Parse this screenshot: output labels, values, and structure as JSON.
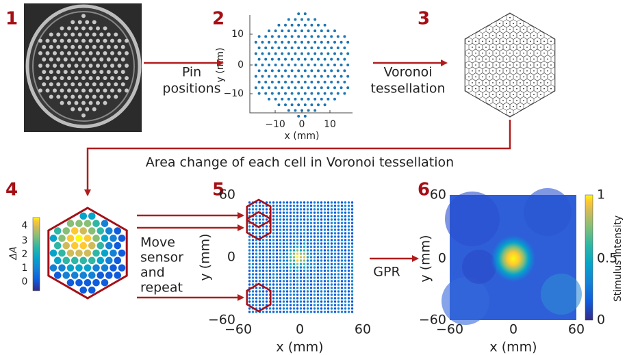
{
  "panel_numbers": [
    "1",
    "2",
    "3",
    "4",
    "5",
    "6"
  ],
  "arrows": {
    "pin_positions": [
      "Pin",
      "positions"
    ],
    "voronoi": [
      "Voronoi",
      "tessellation"
    ],
    "area_change": "Area change of each cell in Voronoi tessellation",
    "move": [
      "Move",
      "sensor",
      "and",
      "repeat"
    ],
    "gpr": "GPR"
  },
  "panel2": {
    "x_label": "x (mm)",
    "y_label": "y (mm)",
    "x_ticks": [
      "−10",
      "0",
      "10"
    ],
    "y_ticks": [
      "10",
      "0",
      "−10"
    ]
  },
  "panel4": {
    "colorbar_label": "ΔA",
    "colorbar_ticks": [
      "4",
      "3",
      "2",
      "1",
      "0"
    ]
  },
  "panel5": {
    "x_label": "x (mm)",
    "y_label": "y (mm)",
    "x_ticks": [
      "−60",
      "0",
      "60"
    ],
    "y_ticks": [
      "60",
      "0",
      "−60"
    ]
  },
  "panel6": {
    "x_label": "x (mm)",
    "y_label": "y (mm)",
    "x_ticks": [
      "−60",
      "0",
      "60"
    ],
    "y_ticks": [
      "60",
      "0",
      "−60"
    ],
    "colorbar_label": "Stimulus Intensity",
    "colorbar_ticks": [
      "1",
      "0.5",
      "0"
    ]
  }
}
